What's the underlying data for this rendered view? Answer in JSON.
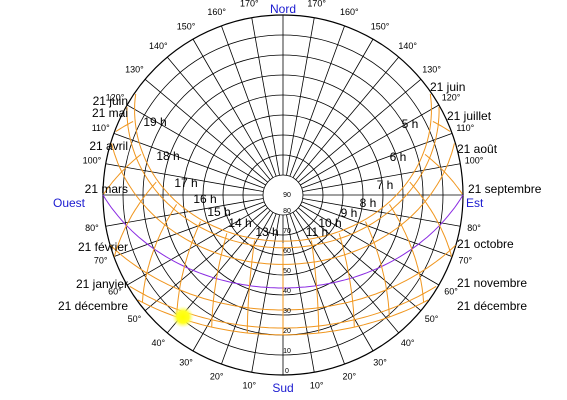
{
  "compass": {
    "north": "Nord",
    "south": "Sud",
    "west": "Ouest",
    "east": "Est"
  },
  "azimuth_labels": [
    "10°",
    "20°",
    "30°",
    "40°",
    "50°",
    "60°",
    "70°",
    "80°",
    "100°",
    "110°",
    "120°",
    "130°",
    "140°",
    "150°",
    "160°",
    "170°"
  ],
  "altitude_labels": [
    "0",
    "10",
    "20",
    "30",
    "40",
    "50",
    "60",
    "70",
    "80",
    "90"
  ],
  "date_labels_left": [
    "21 juin",
    "21 mai",
    "21 avril",
    "21 mars",
    "21 février",
    "21 janvier",
    "21 décembre"
  ],
  "date_labels_right": [
    "21 juin",
    "21 juillet",
    "21 août",
    "21 septembre",
    "21 octobre",
    "21 novembre",
    "21 décembre"
  ],
  "hour_labels": [
    "19 h",
    "18 h",
    "17 h",
    "16 h",
    "15 h",
    "14 h",
    "13 h",
    "11 h",
    "10 h",
    "9 h",
    "8 h",
    "7 h",
    "6 h",
    "5 h"
  ]
}
